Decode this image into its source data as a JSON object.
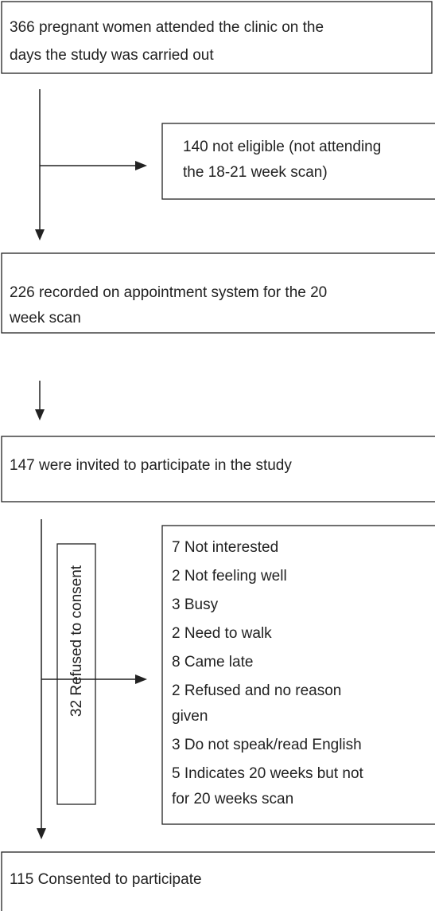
{
  "nodes": [
    {
      "lines": [
        "366 pregnant women attended the clinic on the",
        "days the study was carried out"
      ]
    },
    {
      "lines": [
        "140 not eligible (not attending",
        "the 18-21 week scan)"
      ]
    },
    {
      "lines": [
        "226 recorded on appointment system for the 20",
        "week scan"
      ]
    },
    {
      "lines": [
        "147 were invited to participate in the study"
      ]
    },
    {
      "label": "32 Refused to consent"
    },
    {
      "reasons": [
        [
          "7 Not interested"
        ],
        [
          "2 Not feeling well"
        ],
        [
          "3 Busy"
        ],
        [
          "2 Need to walk"
        ],
        [
          "8 Came late"
        ],
        [
          "2 Refused and no reason",
          "given"
        ],
        [
          "3 Do not speak/read English"
        ],
        [
          "5 Indicates 20 weeks but not",
          "for 20 weeks scan"
        ]
      ]
    },
    {
      "lines": [
        "115 Consented to participate"
      ]
    }
  ]
}
